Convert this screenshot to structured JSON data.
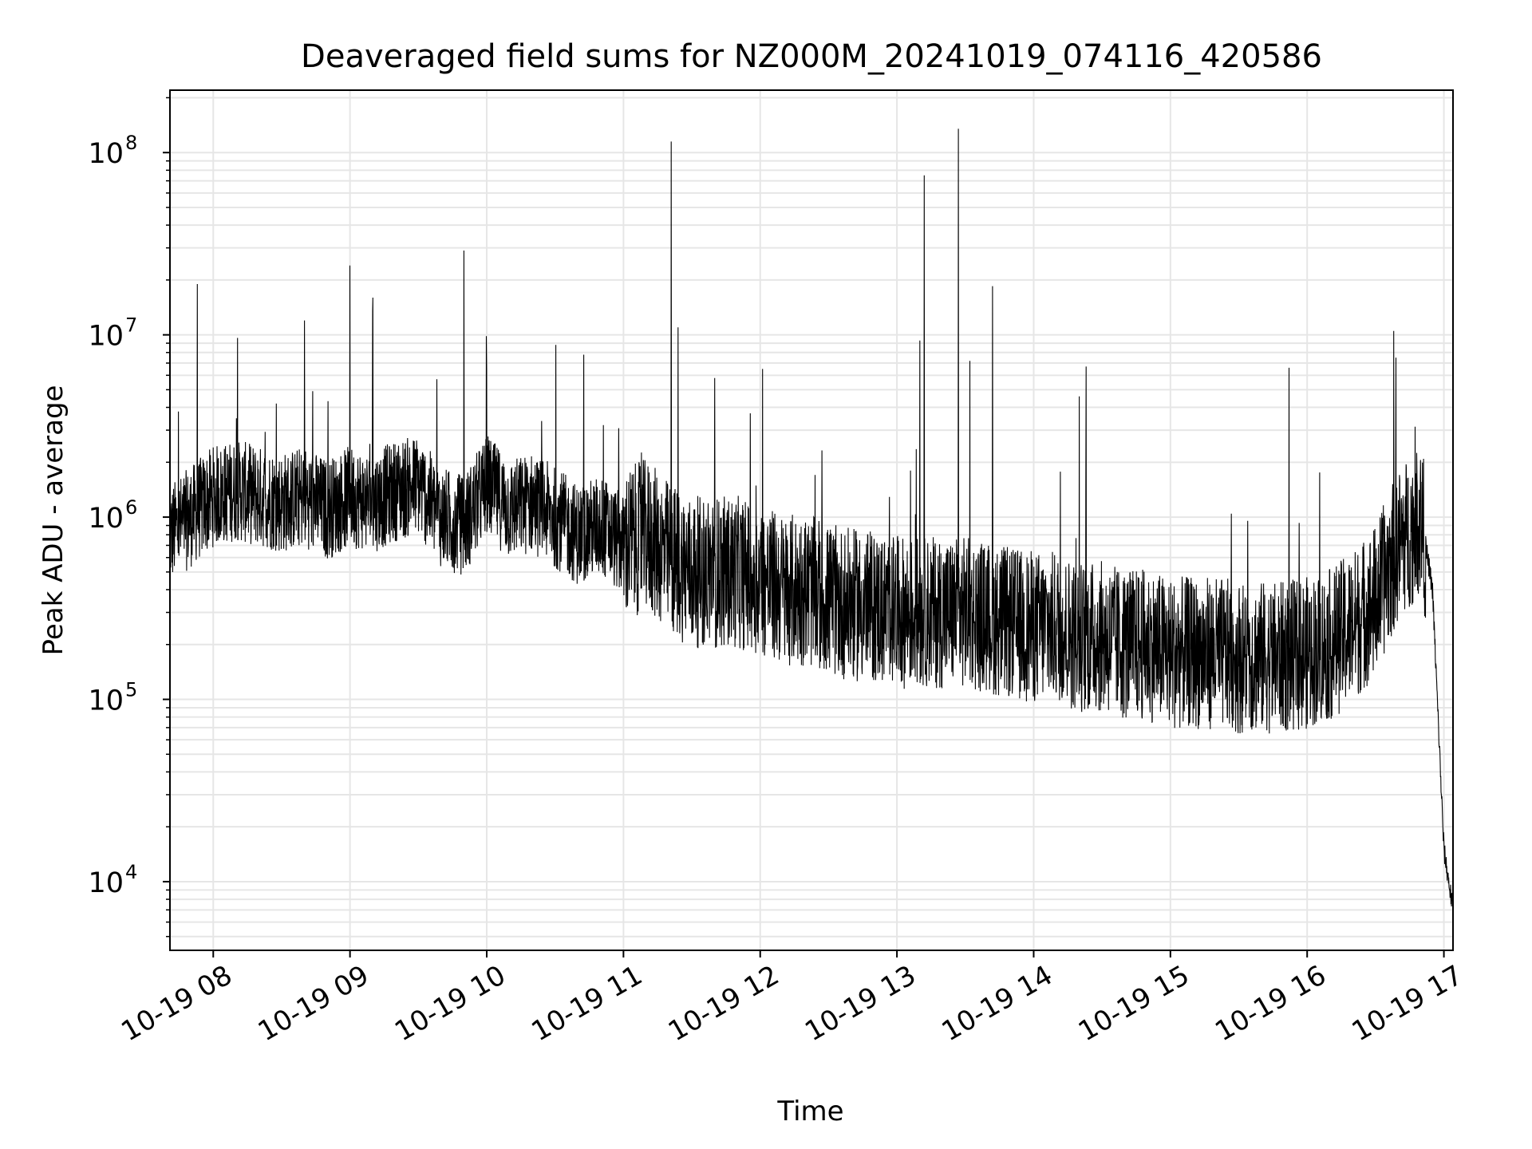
{
  "chart_data": {
    "type": "line",
    "title": "Deaveraged field sums for NZ000M_20241019_074116_420586",
    "xlabel": "Time",
    "ylabel": "Peak ADU - average",
    "yscale": "log",
    "grid": true,
    "grid_minor": true,
    "legend": "none",
    "line_color": "#000000",
    "grid_color": "#e6e6e6",
    "xlim": [
      "2024-10-19 07:41",
      "2024-10-19 17:04"
    ],
    "ylim": [
      4200,
      220000000
    ],
    "x_ticks": [
      "10-19 08",
      "10-19 09",
      "10-19 10",
      "10-19 11",
      "10-19 12",
      "10-19 13",
      "10-19 14",
      "10-19 15",
      "10-19 16",
      "10-19 17"
    ],
    "y_ticks": [
      {
        "value": 10000,
        "base": "10",
        "exp": "4"
      },
      {
        "value": 100000,
        "base": "10",
        "exp": "5"
      },
      {
        "value": 1000000,
        "base": "10",
        "exp": "6"
      },
      {
        "value": 10000000,
        "base": "10",
        "exp": "7"
      },
      {
        "value": 100000000,
        "base": "10",
        "exp": "8"
      }
    ],
    "series": [
      {
        "x": [
          "2024-10-19 07:41",
          "2024-10-19 07:50",
          "2024-10-19 08:00",
          "2024-10-19 08:10",
          "2024-10-19 08:20",
          "2024-10-19 08:30",
          "2024-10-19 08:40",
          "2024-10-19 08:50",
          "2024-10-19 09:00",
          "2024-10-19 09:10",
          "2024-10-19 09:20",
          "2024-10-19 09:30",
          "2024-10-19 09:40",
          "2024-10-19 09:50",
          "2024-10-19 10:00",
          "2024-10-19 10:10",
          "2024-10-19 10:20",
          "2024-10-19 10:30",
          "2024-10-19 10:40",
          "2024-10-19 10:50",
          "2024-10-19 11:00",
          "2024-10-19 11:10",
          "2024-10-19 11:20",
          "2024-10-19 11:30",
          "2024-10-19 11:40",
          "2024-10-19 11:50",
          "2024-10-19 12:00",
          "2024-10-19 12:10",
          "2024-10-19 12:20",
          "2024-10-19 12:30",
          "2024-10-19 12:40",
          "2024-10-19 12:50",
          "2024-10-19 13:00",
          "2024-10-19 13:10",
          "2024-10-19 13:20",
          "2024-10-19 13:30",
          "2024-10-19 13:40",
          "2024-10-19 13:50",
          "2024-10-19 14:00",
          "2024-10-19 14:10",
          "2024-10-19 14:20",
          "2024-10-19 14:30",
          "2024-10-19 14:40",
          "2024-10-19 14:50",
          "2024-10-19 15:00",
          "2024-10-19 15:10",
          "2024-10-19 15:20",
          "2024-10-19 15:30",
          "2024-10-19 15:40",
          "2024-10-19 15:50",
          "2024-10-19 16:00",
          "2024-10-19 16:10",
          "2024-10-19 16:20",
          "2024-10-19 16:30",
          "2024-10-19 16:40",
          "2024-10-19 16:50",
          "2024-10-19 16:55",
          "2024-10-19 17:00",
          "2024-10-19 17:04"
        ],
        "y": [
          800000,
          1000000,
          1300000,
          1400000,
          1300000,
          1200000,
          1300000,
          1100000,
          1300000,
          1200000,
          1400000,
          1500000,
          1000000,
          900000,
          1500000,
          1100000,
          1200000,
          1000000,
          800000,
          900000,
          700000,
          800000,
          600000,
          500000,
          500000,
          500000,
          450000,
          400000,
          400000,
          350000,
          330000,
          320000,
          300000,
          300000,
          300000,
          300000,
          280000,
          260000,
          250000,
          250000,
          220000,
          220000,
          200000,
          200000,
          180000,
          180000,
          180000,
          170000,
          170000,
          170000,
          180000,
          200000,
          250000,
          350000,
          700000,
          1000000,
          400000,
          15000,
          7000
        ]
      }
    ],
    "spikes": [
      {
        "x": "2024-10-19 07:53",
        "y": 19000000
      },
      {
        "x": "2024-10-19 08:40",
        "y": 12000000
      },
      {
        "x": "2024-10-19 09:00",
        "y": 24000000
      },
      {
        "x": "2024-10-19 09:10",
        "y": 16000000
      },
      {
        "x": "2024-10-19 09:50",
        "y": 29000000
      },
      {
        "x": "2024-10-19 10:00",
        "y": 6500000
      },
      {
        "x": "2024-10-19 11:21",
        "y": 115000000
      },
      {
        "x": "2024-10-19 11:24",
        "y": 11000000
      },
      {
        "x": "2024-10-19 11:40",
        "y": 5800000
      },
      {
        "x": "2024-10-19 12:01",
        "y": 6500000
      },
      {
        "x": "2024-10-19 13:10",
        "y": 9300000
      },
      {
        "x": "2024-10-19 13:12",
        "y": 75000000
      },
      {
        "x": "2024-10-19 13:27",
        "y": 135000000
      },
      {
        "x": "2024-10-19 13:32",
        "y": 7200000
      },
      {
        "x": "2024-10-19 13:42",
        "y": 18500000
      },
      {
        "x": "2024-10-19 14:20",
        "y": 4600000
      },
      {
        "x": "2024-10-19 14:23",
        "y": 6700000
      },
      {
        "x": "2024-10-19 15:52",
        "y": 6600000
      },
      {
        "x": "2024-10-19 16:38",
        "y": 10500000
      },
      {
        "x": "2024-10-19 16:39",
        "y": 7500000
      }
    ]
  }
}
